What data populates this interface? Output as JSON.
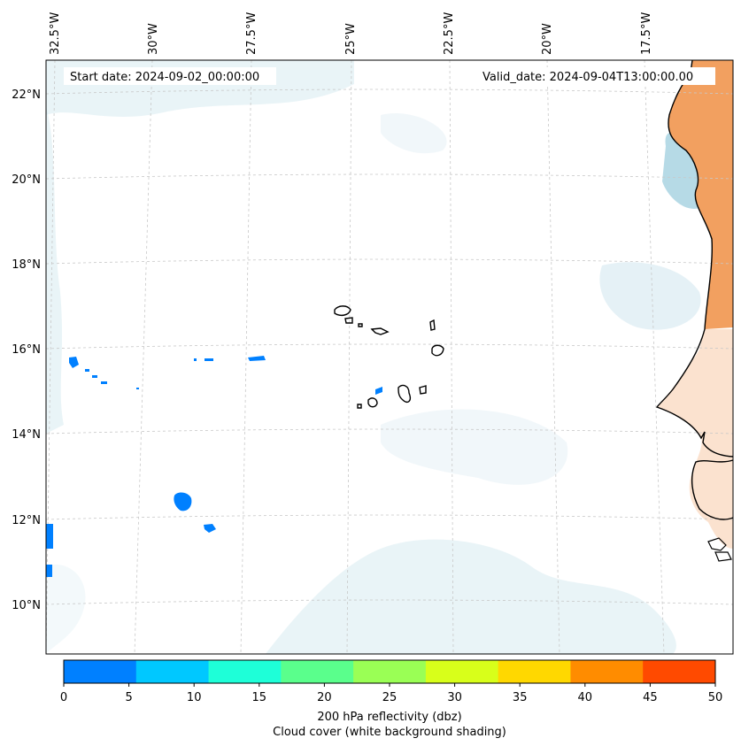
{
  "header": {
    "start_date": "Start date: 2024-09-02_00:00:00",
    "valid_date": "Valid_date: 2024-09-04T13:00:00.00"
  },
  "lon_labels": [
    "32.5°W",
    "30°W",
    "27.5°W",
    "25°W",
    "22.5°W",
    "20°W",
    "17.5°W"
  ],
  "lat_labels": [
    "22°N",
    "20°N",
    "18°N",
    "16°N",
    "14°N",
    "12°N",
    "10°N"
  ],
  "colorbar": {
    "ticks": [
      "0",
      "5",
      "10",
      "15",
      "20",
      "25",
      "30",
      "35",
      "40",
      "45",
      "50"
    ],
    "colors": [
      "#0080ff",
      "#00c8ff",
      "#1effd8",
      "#5aff8c",
      "#9aff55",
      "#d8ff1a",
      "#ffd800",
      "#ff8c00",
      "#ff4a00"
    ],
    "label": "200 hPa reflectivity (dbz)",
    "sublabel": "Cloud cover (white background shading)"
  },
  "palette": {
    "cloud": "#cfe6ee",
    "cloud_dense": "#a9d3e2",
    "land_warm": "#f2a060",
    "land_pale": "#fbe2cf",
    "echo": "#0080ff",
    "coast": "#000000",
    "grid": "#c8c8c8"
  }
}
